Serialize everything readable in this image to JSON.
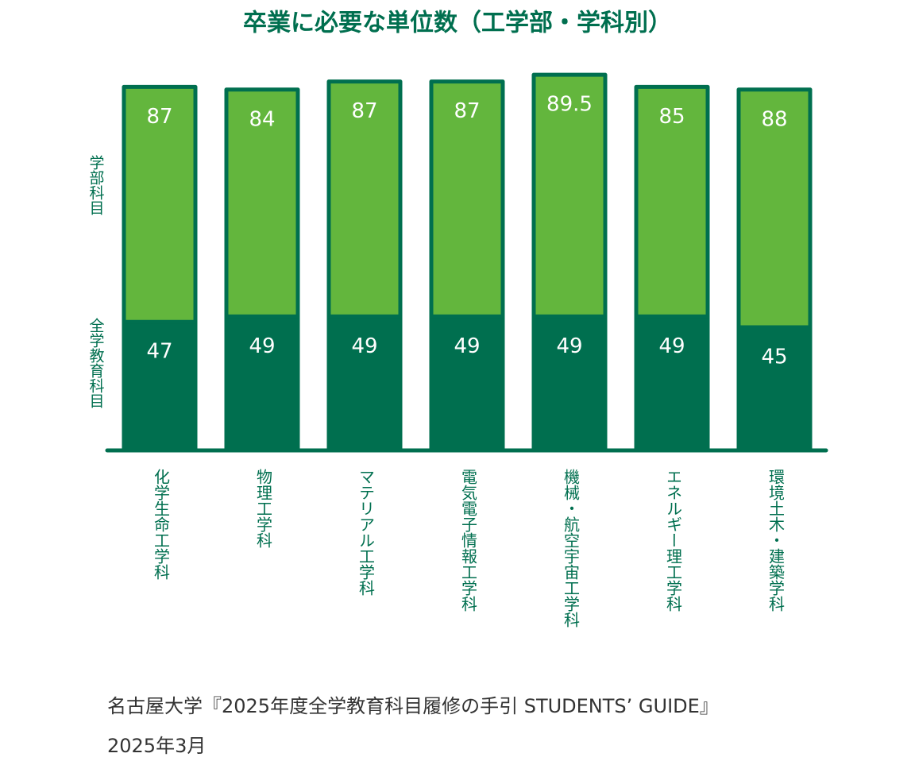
{
  "chart_data": {
    "type": "bar",
    "stacked": true,
    "title": "卒業に必要な単位数（工学部・学科別）",
    "categories": [
      "化学生命工学科",
      "物理工学科",
      "マテリアル工学科",
      "電気電子情報工学科",
      "機械・航空宇宙工学科",
      "エネルギー理工学科",
      "環境土木・建築学科"
    ],
    "series": [
      {
        "name": "全学教育科目",
        "color": "#006f4f",
        "values": [
          47,
          49,
          49,
          49,
          49,
          49,
          45
        ]
      },
      {
        "name": "学部科目",
        "color": "#63b63d",
        "values": [
          87,
          84,
          87,
          87,
          89.5,
          85,
          88
        ]
      }
    ],
    "source": [
      "名古屋大学『2025年度全学教育科目履修の手引 STUDENTS’ GUIDE』",
      "2025年3月"
    ]
  }
}
